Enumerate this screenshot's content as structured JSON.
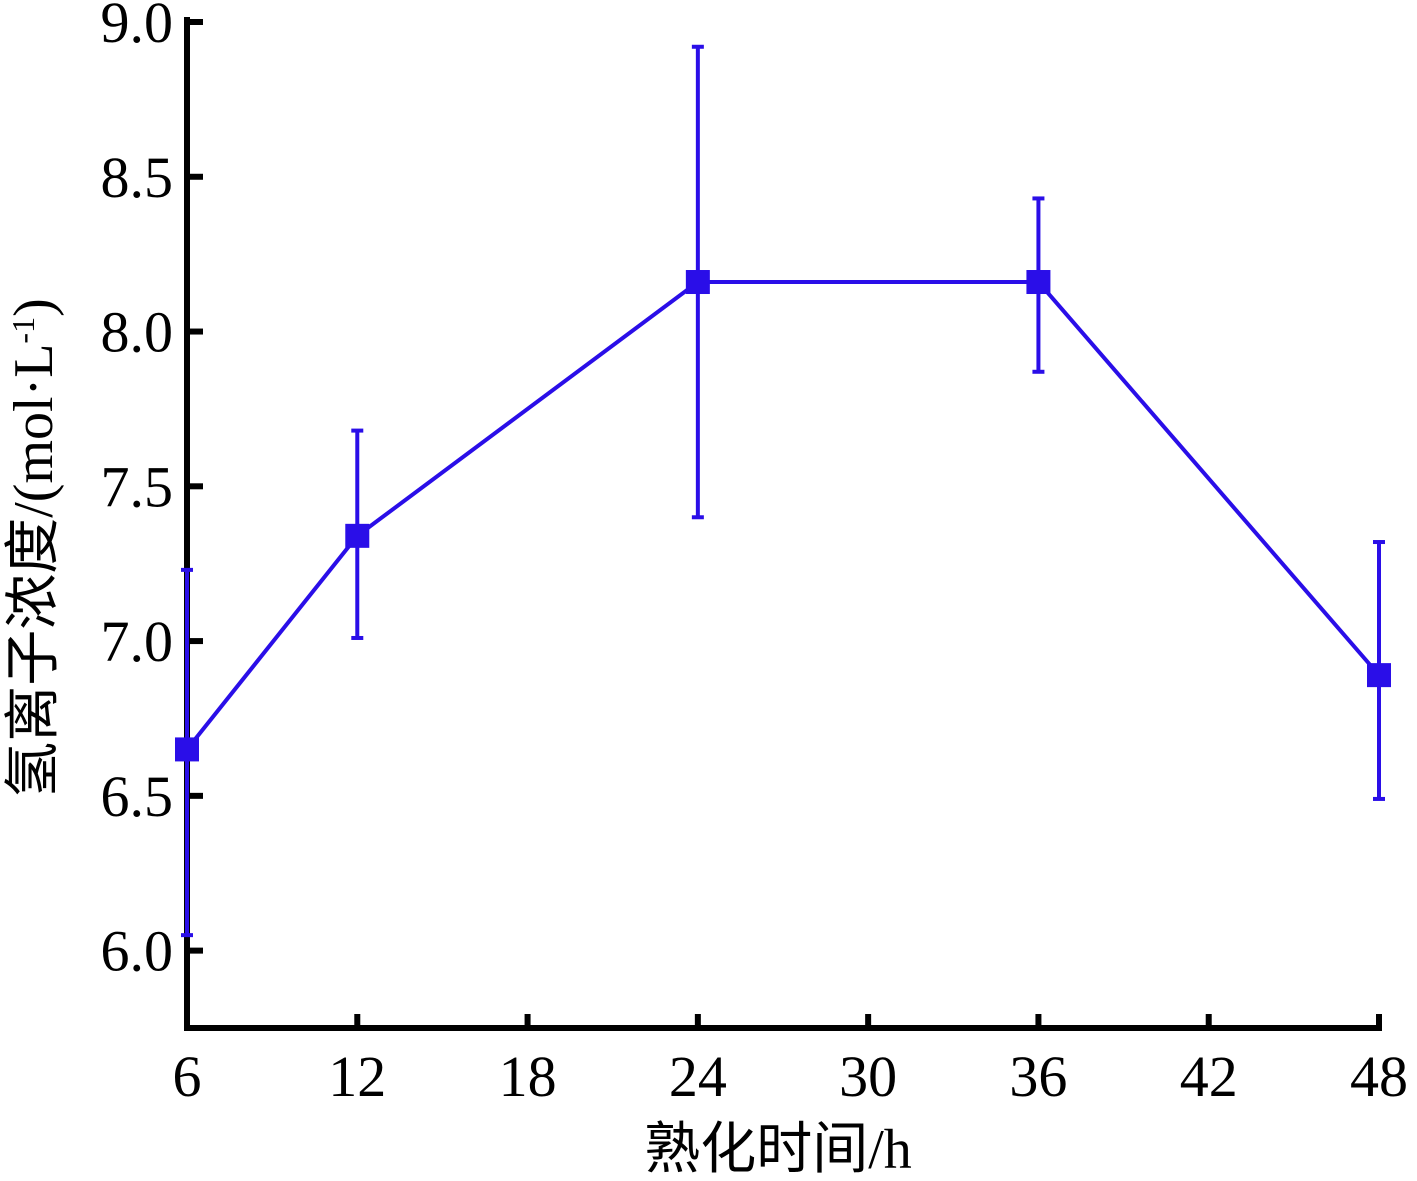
{
  "chart_data": {
    "type": "line",
    "xlabel": "熟化时间/h",
    "ylabel_main": "氢离子浓度/(mol·L",
    "ylabel_sup": "-1",
    "ylabel_close": ")",
    "xlim": [
      6,
      48
    ],
    "ylim": [
      5.75,
      9.0
    ],
    "x_ticks": [
      6,
      12,
      18,
      24,
      30,
      36,
      42,
      48
    ],
    "x_tick_labels": [
      "6",
      "12",
      "18",
      "24",
      "30",
      "36",
      "42",
      "48"
    ],
    "y_ticks": [
      6.0,
      6.5,
      7.0,
      7.5,
      8.0,
      8.5,
      9.0
    ],
    "y_tick_labels": [
      "6.0",
      "6.5",
      "7.0",
      "7.5",
      "8.0",
      "8.5",
      "9.0"
    ],
    "grid": false,
    "series": [
      {
        "marker": "square",
        "color": "#2a0ee8",
        "x": [
          6,
          12,
          24,
          36,
          48
        ],
        "y": [
          6.65,
          7.34,
          8.16,
          8.16,
          6.89
        ],
        "error_low": [
          6.05,
          7.01,
          7.4,
          7.87,
          6.49
        ],
        "error_high": [
          7.23,
          7.68,
          8.92,
          8.43,
          7.32
        ]
      }
    ]
  }
}
